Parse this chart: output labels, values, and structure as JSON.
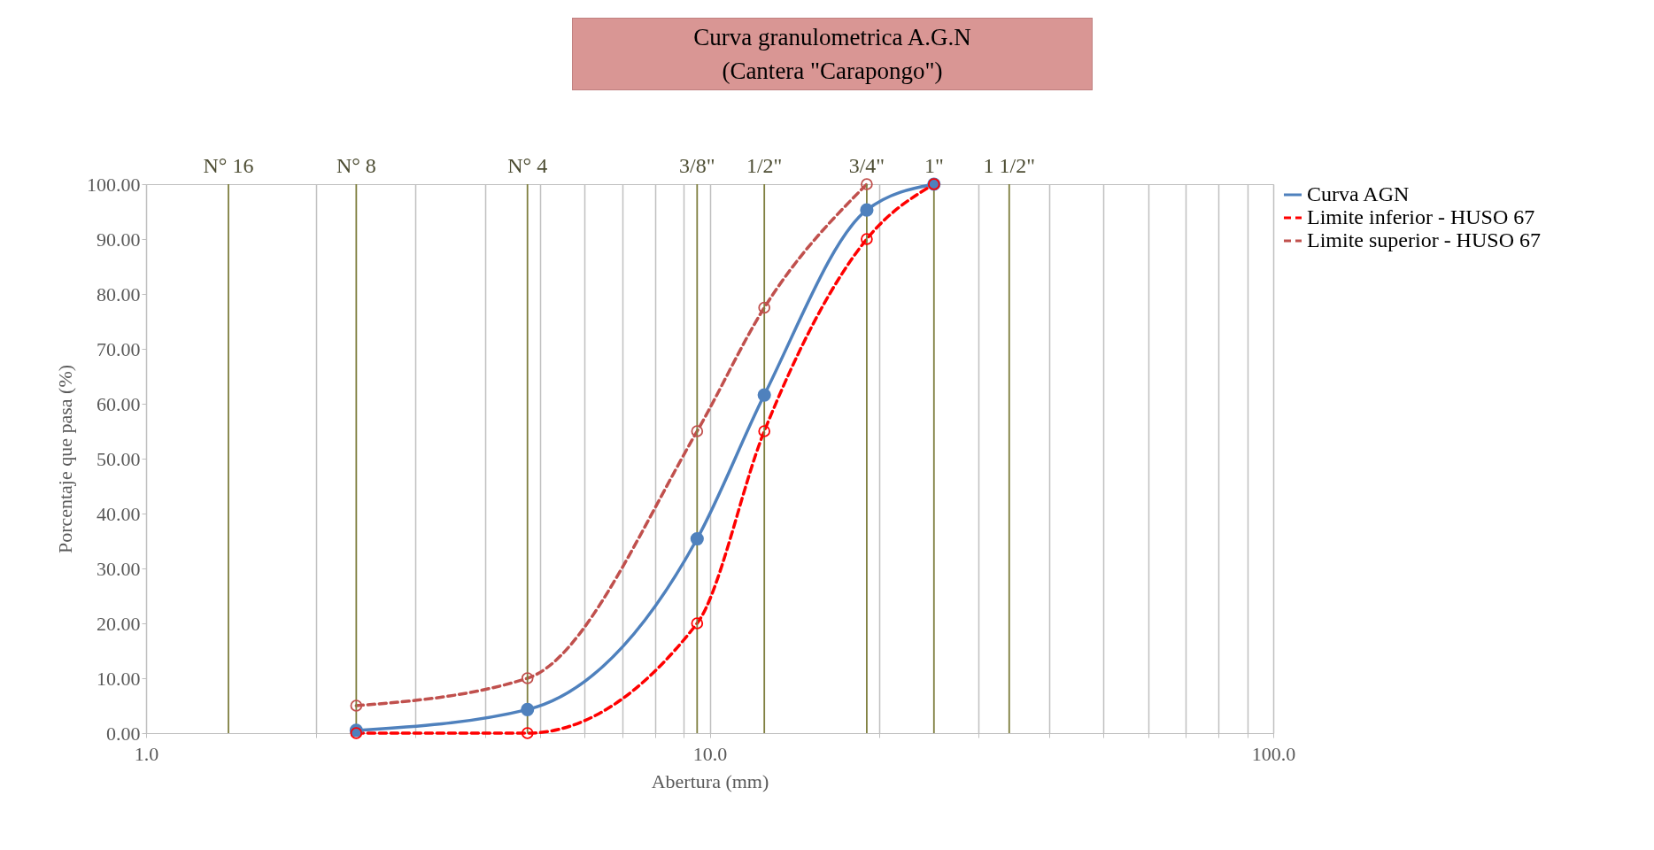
{
  "chart_data": {
    "type": "line",
    "title": "Curva  granulometrica  A.G.N",
    "subtitle": "(Cantera \"Carapongo\")",
    "xlabel": "Abertura (mm)",
    "ylabel": "Porcentaje que pasa (%)",
    "log": "x",
    "grid": "x",
    "legend": "right",
    "marker": "circle",
    "xlim": [
      1,
      100
    ],
    "xticks": [
      {
        "value": 1,
        "label": "1.0"
      },
      {
        "value": 2,
        "label": null
      },
      {
        "value": 3,
        "label": null
      },
      {
        "value": 4,
        "label": null
      },
      {
        "value": 5,
        "label": null
      },
      {
        "value": 6,
        "label": null
      },
      {
        "value": 7,
        "label": null
      },
      {
        "value": 8,
        "label": null
      },
      {
        "value": 9,
        "label": null
      },
      {
        "value": 10,
        "label": "10.0"
      },
      {
        "value": 20,
        "label": null
      },
      {
        "value": 30,
        "label": null
      },
      {
        "value": 40,
        "label": null
      },
      {
        "value": 50,
        "label": null
      },
      {
        "value": 60,
        "label": null
      },
      {
        "value": 70,
        "label": null
      },
      {
        "value": 80,
        "label": null
      },
      {
        "value": 90,
        "label": null
      },
      {
        "value": 100,
        "label": "100.0"
      }
    ],
    "ylim": [
      0,
      100
    ],
    "yticks": [
      {
        "value": 0,
        "label": "0.00"
      },
      {
        "value": 10,
        "label": "10.00"
      },
      {
        "value": 20,
        "label": "20.00"
      },
      {
        "value": 30,
        "label": "30.00"
      },
      {
        "value": 40,
        "label": "40.00"
      },
      {
        "value": 50,
        "label": "50.00"
      },
      {
        "value": 60,
        "label": "60.00"
      },
      {
        "value": 70,
        "label": "70.00"
      },
      {
        "value": 80,
        "label": "80.00"
      },
      {
        "value": 90,
        "label": "90.00"
      },
      {
        "value": 100,
        "label": "100.00"
      }
    ],
    "series": [
      {
        "name": "Curva AGN",
        "color": "#4f81bd",
        "line_style": "solid",
        "x": [
          2.36,
          4.75,
          9.5,
          12.5,
          19,
          25
        ],
        "values": [
          0.5,
          4.3,
          35.4,
          61.6,
          95.3,
          100
        ]
      },
      {
        "name": "Limite inferior - HUSO 67",
        "color": "#ff0000",
        "line_style": "dashed",
        "x": [
          2.36,
          4.75,
          9.5,
          12.5,
          19,
          25
        ],
        "values": [
          0,
          0,
          20,
          55,
          90,
          100
        ]
      },
      {
        "name": "Limite superior - HUSO 67",
        "color": "#c0504d",
        "line_style": "dashed",
        "x": [
          2.36,
          4.75,
          9.5,
          12.5,
          19
        ],
        "values": [
          5,
          10,
          55,
          77.5,
          100
        ]
      }
    ],
    "annotations": [
      {
        "text": "N° 16",
        "x": 1.4,
        "y": 100
      },
      {
        "text": "N° 8",
        "x": 2.36,
        "y": 100
      },
      {
        "text": "N° 4",
        "x": 4.75,
        "y": 100
      },
      {
        "text": "3/8\"",
        "x": 9.5,
        "y": 100
      },
      {
        "text": "1/2\"",
        "x": 12.5,
        "y": 100
      },
      {
        "text": "3/4\"",
        "x": 19,
        "y": 100
      },
      {
        "text": "1\"",
        "x": 25,
        "y": 100
      },
      {
        "text": "1 1/2\"",
        "x": 34,
        "y": 100
      }
    ],
    "ref_lines": [
      {
        "axis": "x",
        "value": 1.4,
        "color": "#7f7f3f"
      },
      {
        "axis": "x",
        "value": 2.36,
        "color": "#7f7f3f"
      },
      {
        "axis": "x",
        "value": 4.75,
        "color": "#7f7f3f"
      },
      {
        "axis": "x",
        "value": 9.5,
        "color": "#7f7f3f"
      },
      {
        "axis": "x",
        "value": 12.5,
        "color": "#7f7f3f"
      },
      {
        "axis": "x",
        "value": 19,
        "color": "#7f7f3f"
      },
      {
        "axis": "x",
        "value": 25,
        "color": "#7f7f3f"
      },
      {
        "axis": "x",
        "value": 34,
        "color": "#7f7f3f"
      }
    ]
  }
}
